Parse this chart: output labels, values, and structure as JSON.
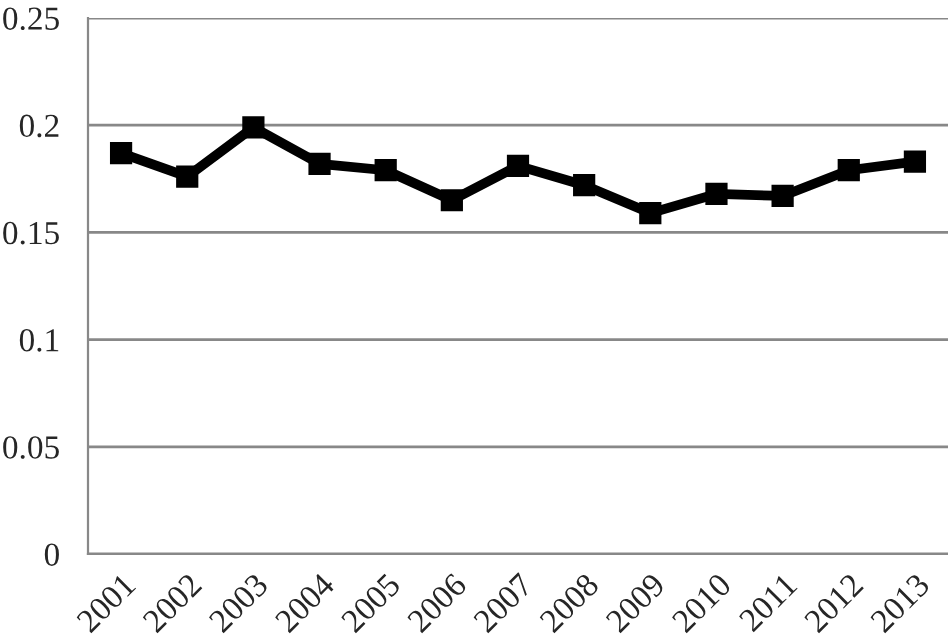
{
  "chart_data": {
    "type": "line",
    "categories": [
      "2001",
      "2002",
      "2003",
      "2004",
      "2005",
      "2006",
      "2007",
      "2008",
      "2009",
      "2010",
      "2011",
      "2012",
      "2013"
    ],
    "series": [
      {
        "color": "#000000",
        "values": [
          0.187,
          0.176,
          0.199,
          0.182,
          0.179,
          0.165,
          0.181,
          0.172,
          0.159,
          0.168,
          0.167,
          0.179,
          0.183
        ]
      }
    ],
    "ylim": [
      0,
      0.25
    ],
    "yticks": [
      0,
      0.05,
      0.1,
      0.15,
      0.2,
      0.25
    ],
    "grid": "y",
    "marker": "square",
    "line_style": "solid",
    "legend": false
  }
}
